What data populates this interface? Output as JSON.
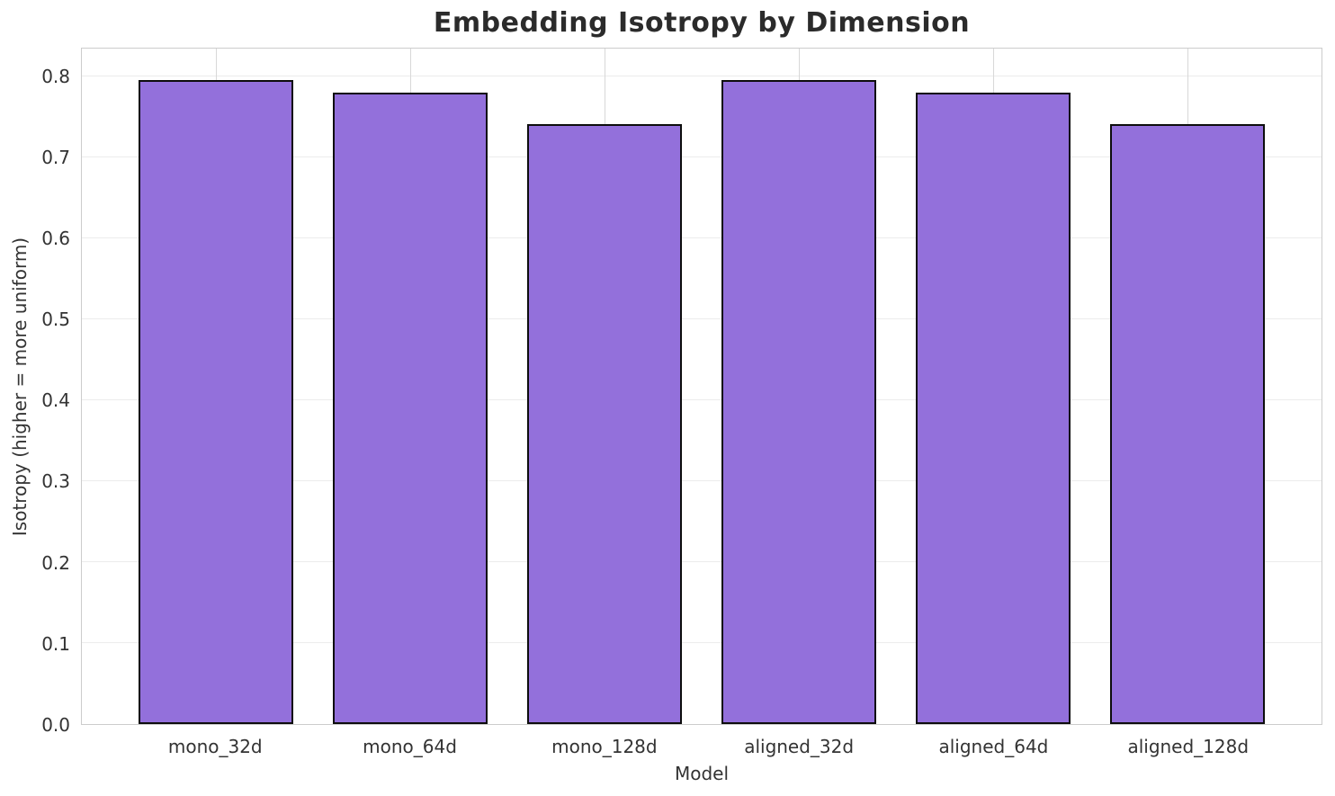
{
  "chart_data": {
    "type": "bar",
    "title": "Embedding Isotropy by Dimension",
    "xlabel": "Model",
    "ylabel": "Isotropy (higher = more uniform)",
    "categories": [
      "mono_32d",
      "mono_64d",
      "mono_128d",
      "aligned_32d",
      "aligned_64d",
      "aligned_128d"
    ],
    "values": [
      0.796,
      0.781,
      0.742,
      0.796,
      0.781,
      0.742
    ],
    "ylim": [
      0,
      0.835
    ],
    "xlim": [
      -0.69,
      5.69
    ],
    "yticks": [
      0.0,
      0.1,
      0.2,
      0.3,
      0.4,
      0.5,
      0.6,
      0.7,
      0.8
    ],
    "bar_width": 0.8,
    "grid": true,
    "legend": "none",
    "bar_color": "#9370DB",
    "bar_edge_color": "#0d0d0d",
    "grid_color": "#ececec",
    "spine_color": "#cccccc",
    "text_color": "#333333",
    "title_color": "#2b2b2b"
  }
}
